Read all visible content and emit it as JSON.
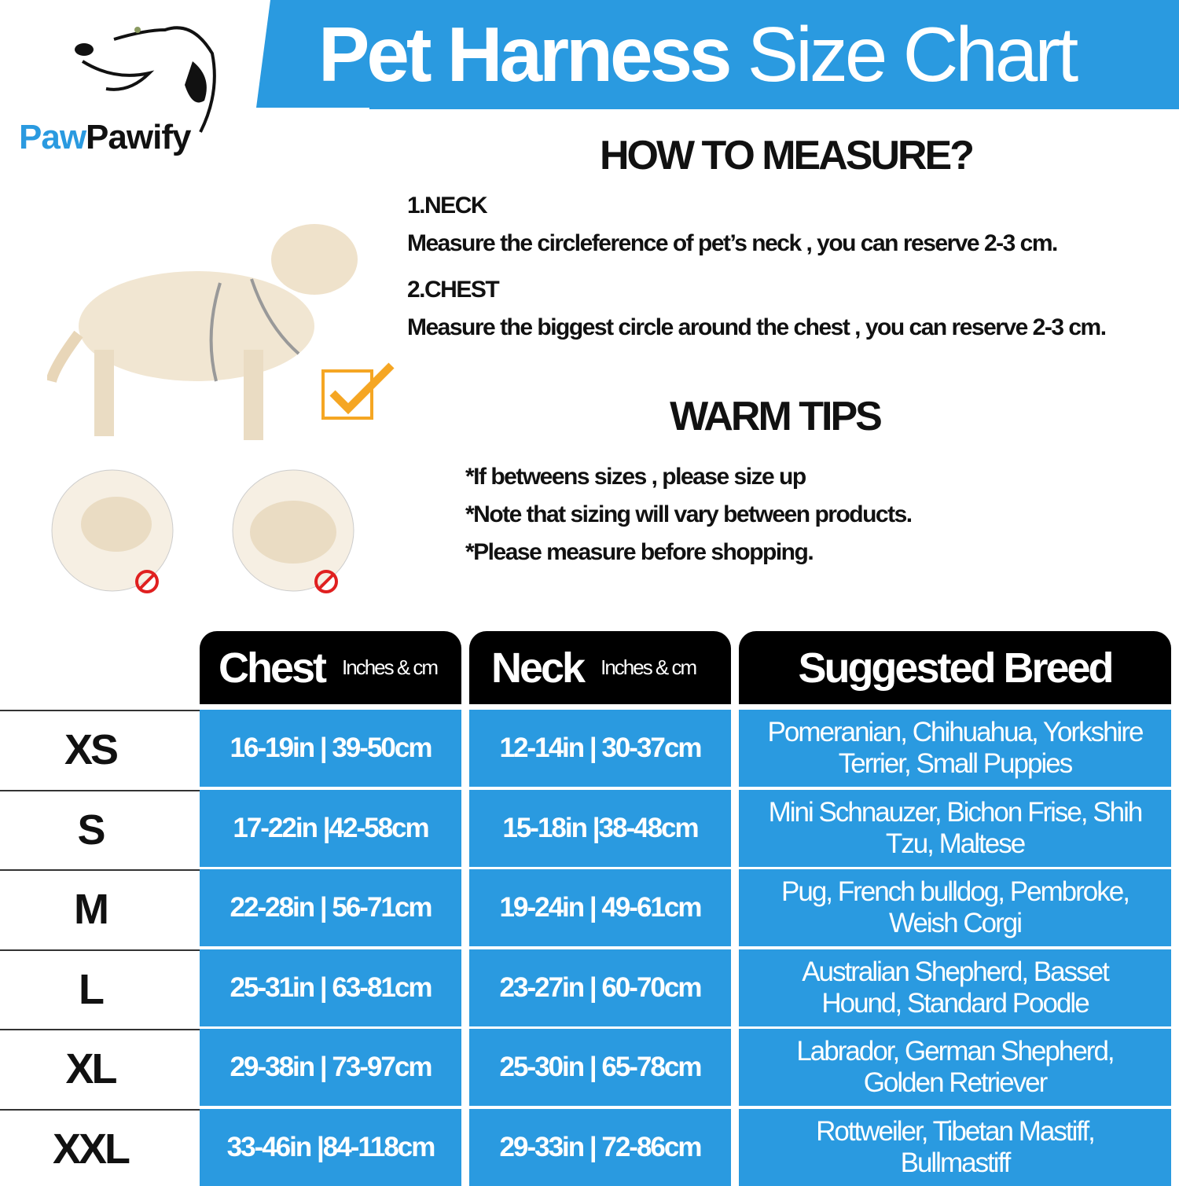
{
  "brand": {
    "part1": "Paw",
    "part2": "Pawify"
  },
  "title": {
    "bold": "Pet Harness",
    "light": "Size Chart"
  },
  "how_to": {
    "heading": "HOW TO MEASURE?",
    "steps": [
      {
        "label": "1.NECK",
        "text": "Measure the circleference of pet’s neck , you can reserve 2-3 cm."
      },
      {
        "label": "2.CHEST",
        "text": "Measure the biggest circle around the chest , you can reserve 2-3 cm."
      }
    ]
  },
  "warm_tips": {
    "heading": "WARM TIPS",
    "items": [
      "*If betweens sizes , please size up",
      "*Note that sizing will vary between products.",
      "*Please measure before shopping."
    ]
  },
  "colors": {
    "accent": "#2a9ae0",
    "check": "#f5a623",
    "prohibit": "#e02020"
  },
  "table": {
    "headers": {
      "chest": "Chest",
      "neck": "Neck",
      "unit": "Inches & cm",
      "breed": "Suggested Breed"
    },
    "rows": [
      {
        "size": "XS",
        "chest": "16-19in | 39-50cm",
        "neck": "12-14in | 30-37cm",
        "breed": "Pomeranian, Chihuahua, Yorkshire Terrier, Small Puppies"
      },
      {
        "size": "S",
        "chest": "17-22in |42-58cm",
        "neck": "15-18in |38-48cm",
        "breed": "Mini Schnauzer, Bichon Frise, Shih Tzu, Maltese"
      },
      {
        "size": "M",
        "chest": "22-28in | 56-71cm",
        "neck": "19-24in | 49-61cm",
        "breed": "Pug, French bulldog, Pembroke, Weish Corgi"
      },
      {
        "size": "L",
        "chest": "25-31in | 63-81cm",
        "neck": "23-27in | 60-70cm",
        "breed": "Australian Shepherd, Basset Hound, Standard Poodle"
      },
      {
        "size": "XL",
        "chest": "29-38in | 73-97cm",
        "neck": "25-30in | 65-78cm",
        "breed": "Labrador, German Shepherd, Golden Retriever"
      },
      {
        "size": "XXL",
        "chest": "33-46in |84-118cm",
        "neck": "29-33in | 72-86cm",
        "breed": "Rottweiler, Tibetan Mastiff, Bullmastiff"
      }
    ]
  }
}
